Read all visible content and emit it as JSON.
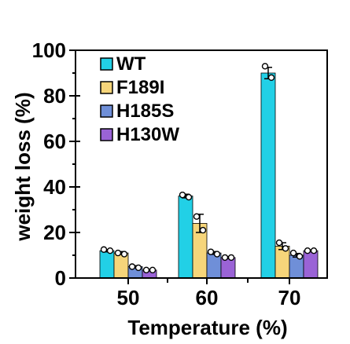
{
  "chart_data": {
    "type": "bar",
    "xlabel": "Temperature (%)",
    "ylabel": "weight loss (%)",
    "categories": [
      "50",
      "60",
      "70"
    ],
    "ylim": [
      0,
      100
    ],
    "yticks": [
      "0",
      "20",
      "40",
      "60",
      "80",
      "100"
    ],
    "error_bars": true,
    "individual_points": true,
    "legend_position": "top-left",
    "series": [
      {
        "name": "WT",
        "color": "#22d0e6",
        "values": [
          12,
          36,
          90
        ],
        "errors": [
          0.5,
          0.8,
          2.5
        ],
        "points": [
          [
            12.5,
            12
          ],
          [
            36.5,
            35.5
          ],
          [
            93,
            88
          ]
        ]
      },
      {
        "name": "F189I",
        "color": "#f6d57a",
        "values": [
          11,
          24,
          14
        ],
        "errors": [
          0.6,
          4,
          1.5
        ],
        "points": [
          [
            11,
            10.5
          ],
          [
            27,
            21
          ],
          [
            15.5,
            13
          ]
        ]
      },
      {
        "name": "H185S",
        "color": "#6f8fd8",
        "values": [
          5,
          11,
          10
        ],
        "errors": [
          0.4,
          0.6,
          0.8
        ],
        "points": [
          [
            5,
            4.5
          ],
          [
            11.5,
            10.5
          ],
          [
            11,
            9.5
          ]
        ]
      },
      {
        "name": "H130W",
        "color": "#9a63d6",
        "values": [
          3.5,
          9,
          12
        ],
        "errors": [
          0.3,
          0.4,
          0.3
        ],
        "points": [
          [
            3.5,
            3.5
          ],
          [
            9,
            9
          ],
          [
            12,
            12
          ]
        ]
      }
    ]
  }
}
